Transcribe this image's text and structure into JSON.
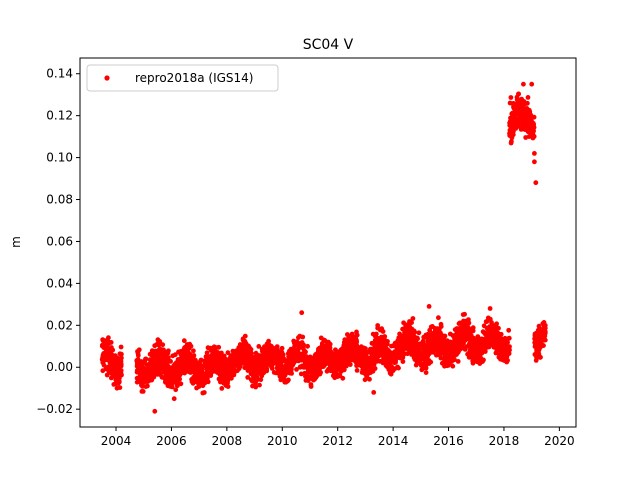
{
  "chart_data": {
    "type": "scatter",
    "title": "SC04 V",
    "xlabel": "",
    "ylabel": "m",
    "xlim": [
      2002.7,
      2020.6
    ],
    "ylim": [
      -0.0285,
      0.1475
    ],
    "xticks": [
      2004,
      2006,
      2008,
      2010,
      2012,
      2014,
      2016,
      2018,
      2020
    ],
    "xtick_labels": [
      "2004",
      "2006",
      "2008",
      "2010",
      "2012",
      "2014",
      "2016",
      "2018",
      "2020"
    ],
    "yticks": [
      -0.02,
      0.0,
      0.02,
      0.04,
      0.06,
      0.08,
      0.1,
      0.12,
      0.14
    ],
    "ytick_labels": [
      "−0.02",
      "0.00",
      "0.02",
      "0.04",
      "0.06",
      "0.08",
      "0.10",
      "0.12",
      "0.14"
    ],
    "grid": false,
    "legend": {
      "position": "top-left",
      "entries": [
        "repro2018a (IGS14)"
      ]
    },
    "series": [
      {
        "name": "repro2018a (IGS14)",
        "color": "#ff0000",
        "marker": "circle",
        "segments": [
          {
            "start": 2003.5,
            "end": 2004.2,
            "mean": 0.003,
            "spread": 0.007
          },
          {
            "start": 2004.75,
            "end": 2008.0,
            "mean": 0.0,
            "spread": 0.0065
          },
          {
            "start": 2008.0,
            "end": 2012.0,
            "mean": 0.003,
            "spread": 0.006
          },
          {
            "start": 2012.0,
            "end": 2014.0,
            "mean": 0.006,
            "spread": 0.0065
          },
          {
            "start": 2014.0,
            "end": 2016.0,
            "mean": 0.01,
            "spread": 0.0065
          },
          {
            "start": 2016.0,
            "end": 2018.2,
            "mean": 0.012,
            "spread": 0.0065
          },
          {
            "start": 2018.2,
            "end": 2019.1,
            "mean": 0.118,
            "spread": 0.007
          },
          {
            "start": 2019.1,
            "end": 2019.5,
            "mean": 0.013,
            "spread": 0.006
          }
        ],
        "outliers": [
          {
            "x": 2005.4,
            "y": -0.021
          },
          {
            "x": 2006.1,
            "y": -0.015
          },
          {
            "x": 2010.7,
            "y": 0.026
          },
          {
            "x": 2013.3,
            "y": -0.012
          },
          {
            "x": 2018.7,
            "y": 0.135
          },
          {
            "x": 2019.0,
            "y": 0.135
          },
          {
            "x": 2019.1,
            "y": 0.102
          },
          {
            "x": 2019.1,
            "y": 0.098
          },
          {
            "x": 2019.15,
            "y": 0.088
          },
          {
            "x": 2015.3,
            "y": 0.029
          },
          {
            "x": 2017.5,
            "y": 0.028
          }
        ]
      }
    ]
  }
}
